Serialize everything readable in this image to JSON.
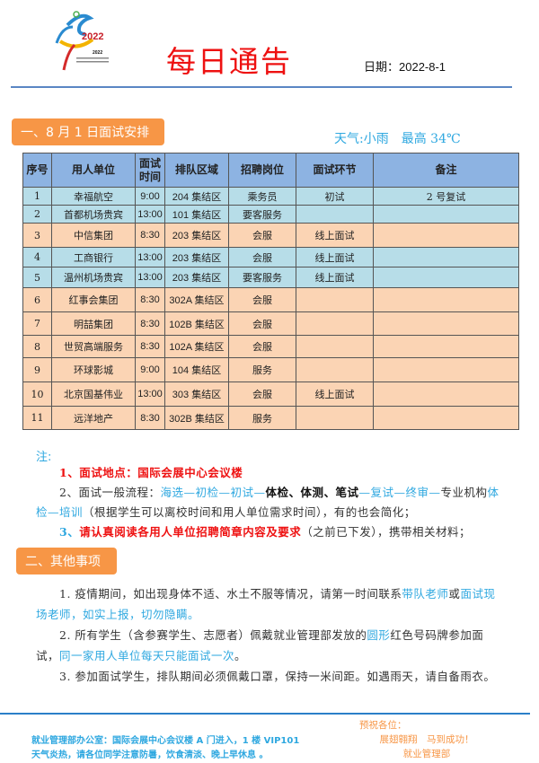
{
  "logo": {
    "text": "2022",
    "caption": "Institutions of Higher Education Civil Aviation Service Skill Competition"
  },
  "header": {
    "title": "每日通告",
    "date": "日期：2022-8-1"
  },
  "section1": {
    "label": "一、8 月 1 日面试安排",
    "weather": "天气:小雨　最高 34℃"
  },
  "table": {
    "headers": [
      "序号",
      "用人单位",
      "面试时间",
      "排队区域",
      "招聘岗位",
      "面试环节",
      "备注"
    ],
    "rows": [
      {
        "no": "1",
        "company": "幸福航空",
        "time": "9:00",
        "area": "204 集结区",
        "position": "乘务员",
        "stage": "初试",
        "note": "2 号复试",
        "color": "blue"
      },
      {
        "no": "2",
        "company": "首都机场贵宾",
        "time": "13:00",
        "area": "101 集结区",
        "position": "要客服务",
        "stage": "",
        "note": "",
        "color": "blue"
      },
      {
        "no": "3",
        "company": "中信集团",
        "time": "8:30",
        "area": "203 集结区",
        "position": "会服",
        "stage": "线上面试",
        "note": "",
        "color": "orange"
      },
      {
        "no": "4",
        "company": "工商银行",
        "time": "13:00",
        "area": "203 集结区",
        "position": "会服",
        "stage": "线上面试",
        "note": "",
        "color": "blue"
      },
      {
        "no": "5",
        "company": "温州机场贵宾",
        "time": "13:00",
        "area": "203 集结区",
        "position": "要客服务",
        "stage": "线上面试",
        "note": "",
        "color": "blue"
      },
      {
        "no": "6",
        "company": "红事会集团",
        "time": "8:30",
        "area": "302A 集结区",
        "position": "会服",
        "stage": "",
        "note": "",
        "color": "orange"
      },
      {
        "no": "7",
        "company": "明喆集团",
        "time": "8:30",
        "area": "102B 集结区",
        "position": "会服",
        "stage": "",
        "note": "",
        "color": "orange"
      },
      {
        "no": "8",
        "company": "世贸高端服务",
        "time": "8:30",
        "area": "102A 集结区",
        "position": "会服",
        "stage": "",
        "note": "",
        "color": "orange"
      },
      {
        "no": "9",
        "company": "环球影城",
        "time": "9:00",
        "area": "104 集结区",
        "position": "服务",
        "stage": "",
        "note": "",
        "color": "orange"
      },
      {
        "no": "10",
        "company": "北京国基伟业",
        "time": "13:00",
        "area": "303 集结区",
        "position": "会服",
        "stage": "线上面试",
        "note": "",
        "color": "orange"
      },
      {
        "no": "11",
        "company": "远洋地产",
        "time": "8:30",
        "area": "302B 集结区",
        "position": "服务",
        "stage": "",
        "note": "",
        "color": "orange"
      }
    ]
  },
  "notes": {
    "label": "注:",
    "p1": "1、面试地点：国际会展中心会议楼",
    "p2": [
      {
        "t": "2、面试一般流程：",
        "c": ""
      },
      {
        "t": "海选—初检—初试—",
        "c": "blue-t"
      },
      {
        "t": "体检、体测、笔试",
        "c": "bold-t"
      },
      {
        "t": "—复试—终审—",
        "c": "blue-t"
      },
      {
        "t": "专业机构",
        "c": ""
      },
      {
        "t": "体检—培训",
        "c": "blue-t"
      },
      {
        "t": "（根据学生可以离校时间和用人单位需求时间），有的也会简化；",
        "c": ""
      }
    ],
    "p3": [
      {
        "t": "3、",
        "c": "cy-b"
      },
      {
        "t": "请认真阅读各用人单位招聘简章内容及要求",
        "c": "red-t"
      },
      {
        "t": "（之前已下发），携带相关材料；",
        "c": ""
      }
    ]
  },
  "section2": {
    "label": "二、其他事项",
    "p1": [
      {
        "t": "1. 疫情期间，如出现身体不适、水土不服等情况，请第一时间联系",
        "c": ""
      },
      {
        "t": "带队老师",
        "c": "blue-t"
      },
      {
        "t": "或",
        "c": ""
      },
      {
        "t": "面试现场老师，如实上报，切勿隐瞒。",
        "c": "blue-t"
      }
    ],
    "p2": [
      {
        "t": "2. 所有学生（含参赛学生、志愿者）佩戴就业管理部发放的",
        "c": ""
      },
      {
        "t": "圆形",
        "c": "blue-t"
      },
      {
        "t": "红色号码牌参加面试，",
        "c": ""
      },
      {
        "t": "同一家用人单位每天只能面试一次",
        "c": "blue-t"
      },
      {
        "t": "。",
        "c": ""
      }
    ],
    "p3": [
      {
        "t": "3. 参加面试学生，排队期间必须佩戴口罩，保持一米间距。如遇雨天，请自备雨衣。",
        "c": ""
      }
    ]
  },
  "footer": {
    "office": "就业管理部办公室：国际会展中心会议楼 A 门进入，1 楼 VIP101",
    "tip": "天气炎热，请各位同学注意防暑，饮食清淡、晚上早休息 。",
    "wish1": "预祝各位：",
    "wish2": "展翅翱翔　马到成功！",
    "wish3": "就业管理部"
  },
  "colors": {
    "title": "#ee1111",
    "section": "#f79646",
    "accent": "#2fa8e0",
    "header_row": "#8db3e2",
    "blue_row": "#b7dde8",
    "orange_row": "#fbd4b4"
  }
}
